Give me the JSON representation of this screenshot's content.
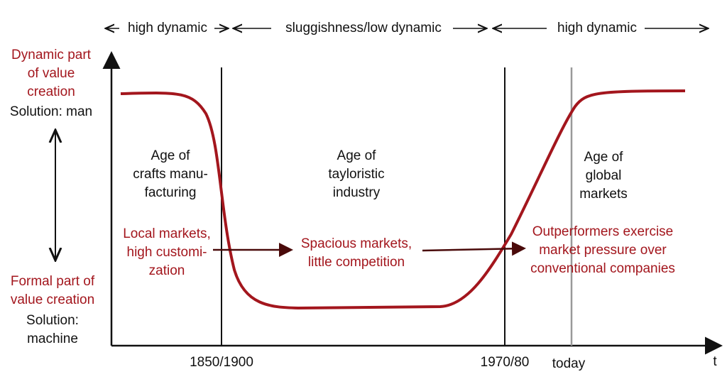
{
  "header": {
    "phases": [
      "high dynamic",
      "sluggishness/low dynamic",
      "high dynamic"
    ]
  },
  "y_axis": {
    "top": {
      "lines": [
        "Dynamic part",
        "of value",
        "creation"
      ],
      "solution": "Solution: man"
    },
    "bottom": {
      "lines": [
        "Formal part of",
        "value creation"
      ],
      "solution": [
        "Solution:",
        "machine"
      ]
    }
  },
  "ages": [
    {
      "lines": [
        "Age of",
        "crafts manu-",
        "facturing"
      ]
    },
    {
      "lines": [
        "Age of",
        "tayloristic",
        "industry"
      ]
    },
    {
      "lines": [
        "Age of",
        "global",
        "markets"
      ]
    }
  ],
  "markets": [
    {
      "lines": [
        "Local markets,",
        "high customi-",
        "zation"
      ]
    },
    {
      "lines": [
        "Spacious markets,",
        "little competition"
      ]
    },
    {
      "lines": [
        "Outperformers exercise",
        "market pressure over",
        "conventional companies"
      ]
    }
  ],
  "x_axis": {
    "labels": [
      "1850/1900",
      "1970/80",
      "today"
    ],
    "title": "t"
  }
}
